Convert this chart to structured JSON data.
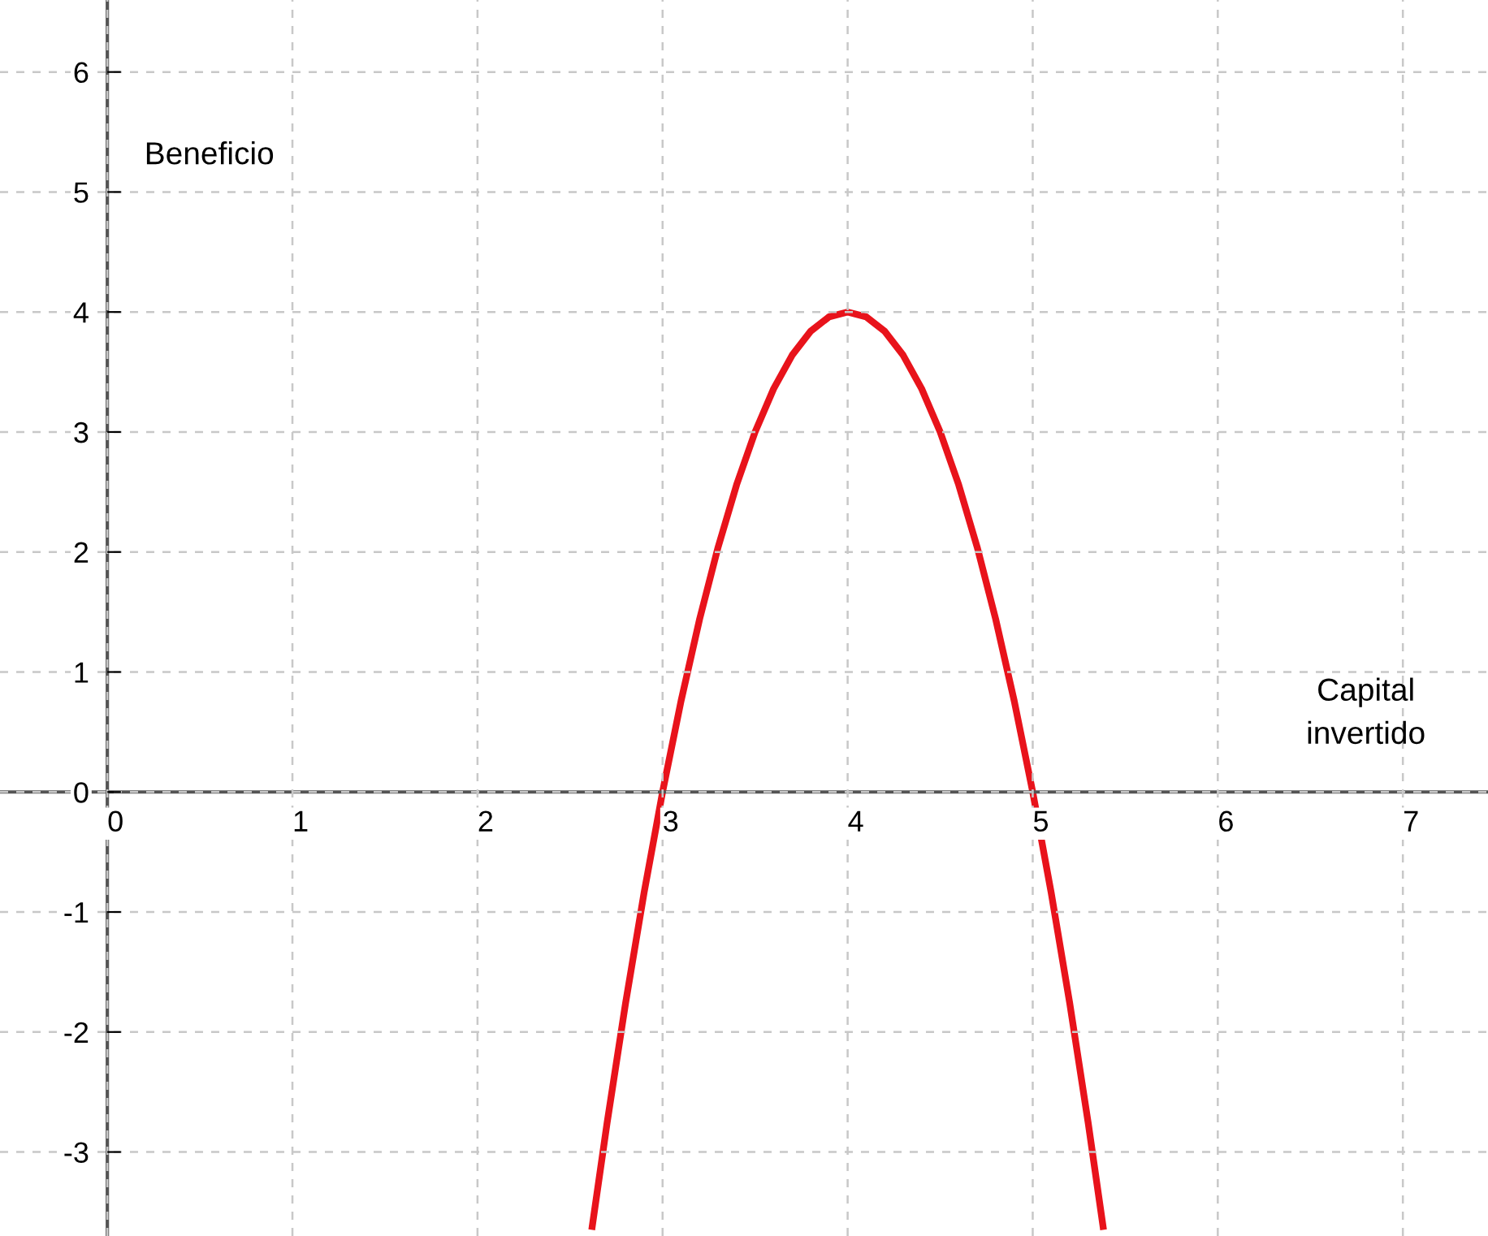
{
  "chart_data": {
    "type": "line",
    "xlabel": "Capital\ninvertido",
    "ylabel": "Beneficio",
    "series": [
      {
        "color": "#e8131b",
        "x": [
          2.62,
          2.7,
          2.8,
          2.9,
          3.0,
          3.1,
          3.2,
          3.3,
          3.4,
          3.5,
          3.6,
          3.7,
          3.8,
          3.9,
          4.0,
          4.1,
          4.2,
          4.3,
          4.4,
          4.5,
          4.6,
          4.7,
          4.8,
          4.9,
          5.0,
          5.1,
          5.2,
          5.3,
          5.38
        ],
        "values": [
          -3.62,
          -2.76,
          -1.76,
          -0.84,
          0,
          0.76,
          1.44,
          2.04,
          2.56,
          3.0,
          3.36,
          3.64,
          3.84,
          3.96,
          4.0,
          3.96,
          3.84,
          3.64,
          3.36,
          3.0,
          2.56,
          2.04,
          1.44,
          0.76,
          0,
          -0.84,
          -1.76,
          -2.76,
          -3.62
        ]
      }
    ],
    "xlim": [
      -0.58,
      7.46
    ],
    "ylim": [
      -3.7,
      6.6
    ],
    "xticks": [
      0,
      1,
      2,
      3,
      4,
      5,
      6,
      7
    ],
    "yticks": [
      -3,
      -2,
      -1,
      0,
      1,
      2,
      3,
      4,
      5,
      6
    ],
    "grid": true,
    "line_style": "solid",
    "marker": "none"
  }
}
